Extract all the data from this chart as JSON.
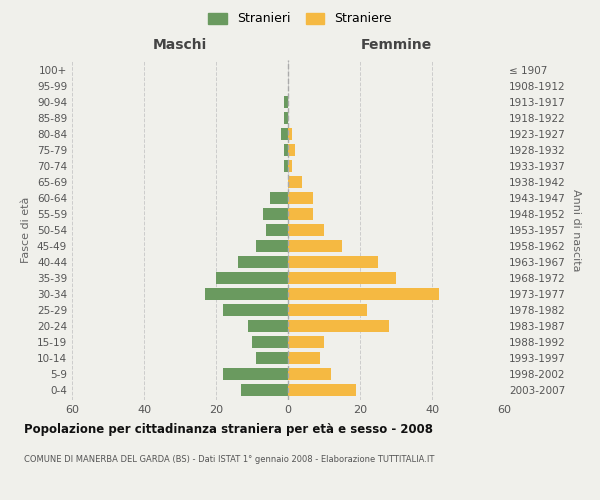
{
  "age_groups": [
    "0-4",
    "5-9",
    "10-14",
    "15-19",
    "20-24",
    "25-29",
    "30-34",
    "35-39",
    "40-44",
    "45-49",
    "50-54",
    "55-59",
    "60-64",
    "65-69",
    "70-74",
    "75-79",
    "80-84",
    "85-89",
    "90-94",
    "95-99",
    "100+"
  ],
  "birth_years": [
    "2003-2007",
    "1998-2002",
    "1993-1997",
    "1988-1992",
    "1983-1987",
    "1978-1982",
    "1973-1977",
    "1968-1972",
    "1963-1967",
    "1958-1962",
    "1953-1957",
    "1948-1952",
    "1943-1947",
    "1938-1942",
    "1933-1937",
    "1928-1932",
    "1923-1927",
    "1918-1922",
    "1913-1917",
    "1908-1912",
    "≤ 1907"
  ],
  "maschi": [
    13,
    18,
    9,
    10,
    11,
    18,
    23,
    20,
    14,
    9,
    6,
    7,
    5,
    0,
    1,
    1,
    2,
    1,
    1,
    0,
    0
  ],
  "femmine": [
    19,
    12,
    9,
    10,
    28,
    22,
    42,
    30,
    25,
    15,
    10,
    7,
    7,
    4,
    1,
    2,
    1,
    0,
    0,
    0,
    0
  ],
  "maschi_color": "#6a9a5f",
  "femmine_color": "#f5b942",
  "title": "Popolazione per cittadinanza straniera per età e sesso - 2008",
  "subtitle": "COMUNE DI MANERBA DEL GARDA (BS) - Dati ISTAT 1° gennaio 2008 - Elaborazione TUTTITALIA.IT",
  "xlabel_left": "Maschi",
  "xlabel_right": "Femmine",
  "ylabel_left": "Fasce di età",
  "ylabel_right": "Anni di nascita",
  "xlim": 60,
  "legend_stranieri": "Stranieri",
  "legend_straniere": "Straniere",
  "background_color": "#f0f0eb",
  "grid_color": "#cccccc",
  "bar_height": 0.75
}
